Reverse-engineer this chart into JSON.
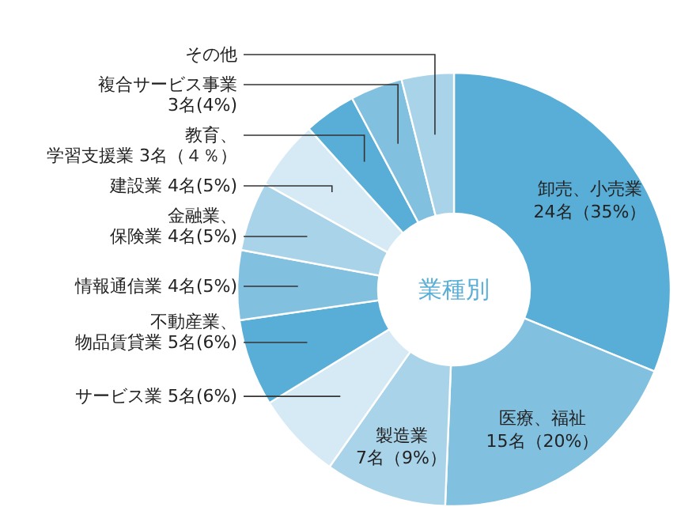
{
  "chart_data": {
    "type": "donut",
    "title": "業種別",
    "categories": [
      "卸売、小売業",
      "医療、福祉",
      "製造業",
      "サービス業",
      "不動産業、物品賃貸業",
      "情報通信業",
      "金融業、保険業",
      "建設業",
      "教育、学習支援業",
      "複合サービス事業",
      "その他"
    ],
    "values": [
      24,
      15,
      7,
      5,
      5,
      4,
      4,
      4,
      3,
      3,
      3
    ],
    "value_labels": [
      "24名（35%）",
      "15名（20%）",
      "7名（9%）",
      "5名(6%)",
      "5名(6%)",
      "4名(5%)",
      "4名(5%)",
      "4名(5%)",
      "3名（４％）",
      "3名(4%)",
      null
    ],
    "colors": [
      "#58aed6",
      "#82c0e0",
      "#a9d3e9",
      "#d6eaf5",
      "#58aed6",
      "#82c0e0",
      "#a9d3e9",
      "#d6eaf5",
      "#58aed6",
      "#82c0e0",
      "#a9d3e9"
    ]
  }
}
